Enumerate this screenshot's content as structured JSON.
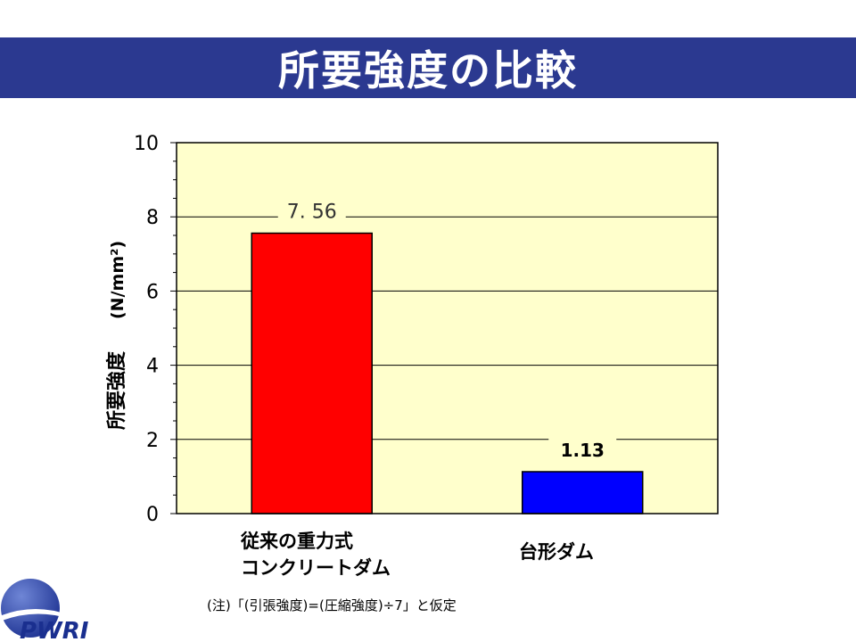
{
  "slide": {
    "title": "所要強度の比較",
    "note": "(注)「(引張強度)=(圧縮強度)÷7」と仮定",
    "logo_text": "PWRI"
  },
  "colors": {
    "title_band": "#2b3990",
    "plot_bg": "#ffffcc",
    "bar_conventional": "#ff0000",
    "bar_trapezoid": "#0000ff"
  },
  "chart_data": {
    "type": "bar",
    "title": "",
    "ylabel": "所要強度　(N/mm²)",
    "ylabel_main": "所要強度",
    "ylabel_unit": "(N/mm²)",
    "xlabel": "",
    "ylim": [
      0,
      10
    ],
    "yticks": [
      0,
      2,
      4,
      6,
      8,
      10
    ],
    "grid": true,
    "categories": [
      {
        "lines": [
          "従来の重力式",
          "コンクリートダム"
        ]
      },
      {
        "lines": [
          "台形ダム"
        ]
      }
    ],
    "values": [
      7.56,
      1.13
    ],
    "value_labels": [
      "7. 56",
      "1.13"
    ],
    "bar_colors": [
      "#ff0000",
      "#0000ff"
    ]
  }
}
